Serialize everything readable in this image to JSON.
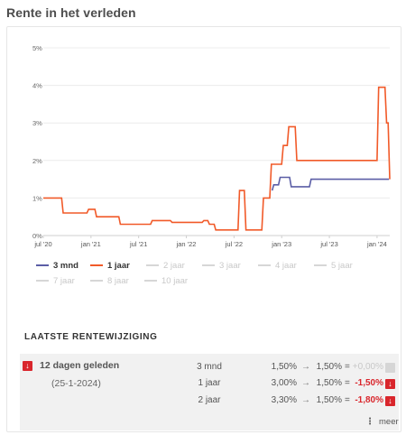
{
  "heading": "Rente in het verleden",
  "chart_data": {
    "type": "line",
    "x_ticks": [
      "jul '20",
      "jan '21",
      "jul '21",
      "jan '22",
      "jul '22",
      "jan '23",
      "jul '23",
      "jan '24"
    ],
    "y_ticks": [
      "0%",
      "1%",
      "2%",
      "3%",
      "4%",
      "5%"
    ],
    "ylim": [
      0,
      5
    ],
    "x_unit": "months since jan 2020",
    "series": [
      {
        "name": "3 mnd",
        "color": "#5b5ea6",
        "points": [
          [
            34.8,
            1.2
          ],
          [
            35.0,
            1.35
          ],
          [
            35.6,
            1.35
          ],
          [
            35.8,
            1.55
          ],
          [
            37.0,
            1.55
          ],
          [
            37.2,
            1.3
          ],
          [
            39.5,
            1.3
          ],
          [
            39.7,
            1.5
          ],
          [
            49.5,
            1.5
          ]
        ]
      },
      {
        "name": "1 jaar",
        "color": "#f15a29",
        "points": [
          [
            6,
            1.0
          ],
          [
            8.3,
            1.0
          ],
          [
            8.5,
            0.6
          ],
          [
            11.5,
            0.6
          ],
          [
            11.7,
            0.7
          ],
          [
            12.5,
            0.7
          ],
          [
            12.7,
            0.5
          ],
          [
            15.5,
            0.5
          ],
          [
            15.7,
            0.3
          ],
          [
            19.5,
            0.3
          ],
          [
            19.7,
            0.4
          ],
          [
            22.0,
            0.4
          ],
          [
            22.2,
            0.35
          ],
          [
            26.0,
            0.35
          ],
          [
            26.2,
            0.4
          ],
          [
            26.7,
            0.4
          ],
          [
            26.9,
            0.3
          ],
          [
            27.5,
            0.3
          ],
          [
            27.7,
            0.15
          ],
          [
            30.5,
            0.15
          ],
          [
            30.7,
            1.2
          ],
          [
            31.3,
            1.2
          ],
          [
            31.5,
            0.15
          ],
          [
            33.5,
            0.15
          ],
          [
            33.7,
            1.0
          ],
          [
            34.5,
            1.0
          ],
          [
            34.7,
            1.9
          ],
          [
            36.0,
            1.9
          ],
          [
            36.2,
            2.4
          ],
          [
            36.7,
            2.4
          ],
          [
            36.9,
            2.9
          ],
          [
            37.7,
            2.9
          ],
          [
            37.9,
            2.0
          ],
          [
            48.0,
            2.0
          ],
          [
            48.2,
            3.95
          ],
          [
            49.0,
            3.95
          ],
          [
            49.2,
            3.0
          ],
          [
            49.4,
            3.0
          ],
          [
            49.6,
            1.5
          ]
        ]
      }
    ],
    "legend": [
      {
        "label": "3 mnd",
        "active": true,
        "color": "#5b5ea6"
      },
      {
        "label": "1 jaar",
        "active": true,
        "color": "#f15a29"
      },
      {
        "label": "2 jaar",
        "active": false
      },
      {
        "label": "3 jaar",
        "active": false
      },
      {
        "label": "4 jaar",
        "active": false
      },
      {
        "label": "5 jaar",
        "active": false
      },
      {
        "label": "7 jaar",
        "active": false
      },
      {
        "label": "8 jaar",
        "active": false
      },
      {
        "label": "10 jaar",
        "active": false
      }
    ]
  },
  "latest": {
    "title": "LAATSTE RENTEWIJZIGING",
    "when": "12 dagen geleden",
    "date": "(25-1-2024)",
    "arrow": "→",
    "eq": "=",
    "rows": [
      {
        "term": "3 mnd",
        "old": "1,50%",
        "new": "1,50%",
        "delta": "+0,00%",
        "zero": true
      },
      {
        "term": "1 jaar",
        "old": "3,00%",
        "new": "1,50%",
        "delta": "-1,50%",
        "zero": false
      },
      {
        "term": "2 jaar",
        "old": "3,30%",
        "new": "1,50%",
        "delta": "-1,80%",
        "zero": false
      }
    ],
    "more": "meer"
  }
}
